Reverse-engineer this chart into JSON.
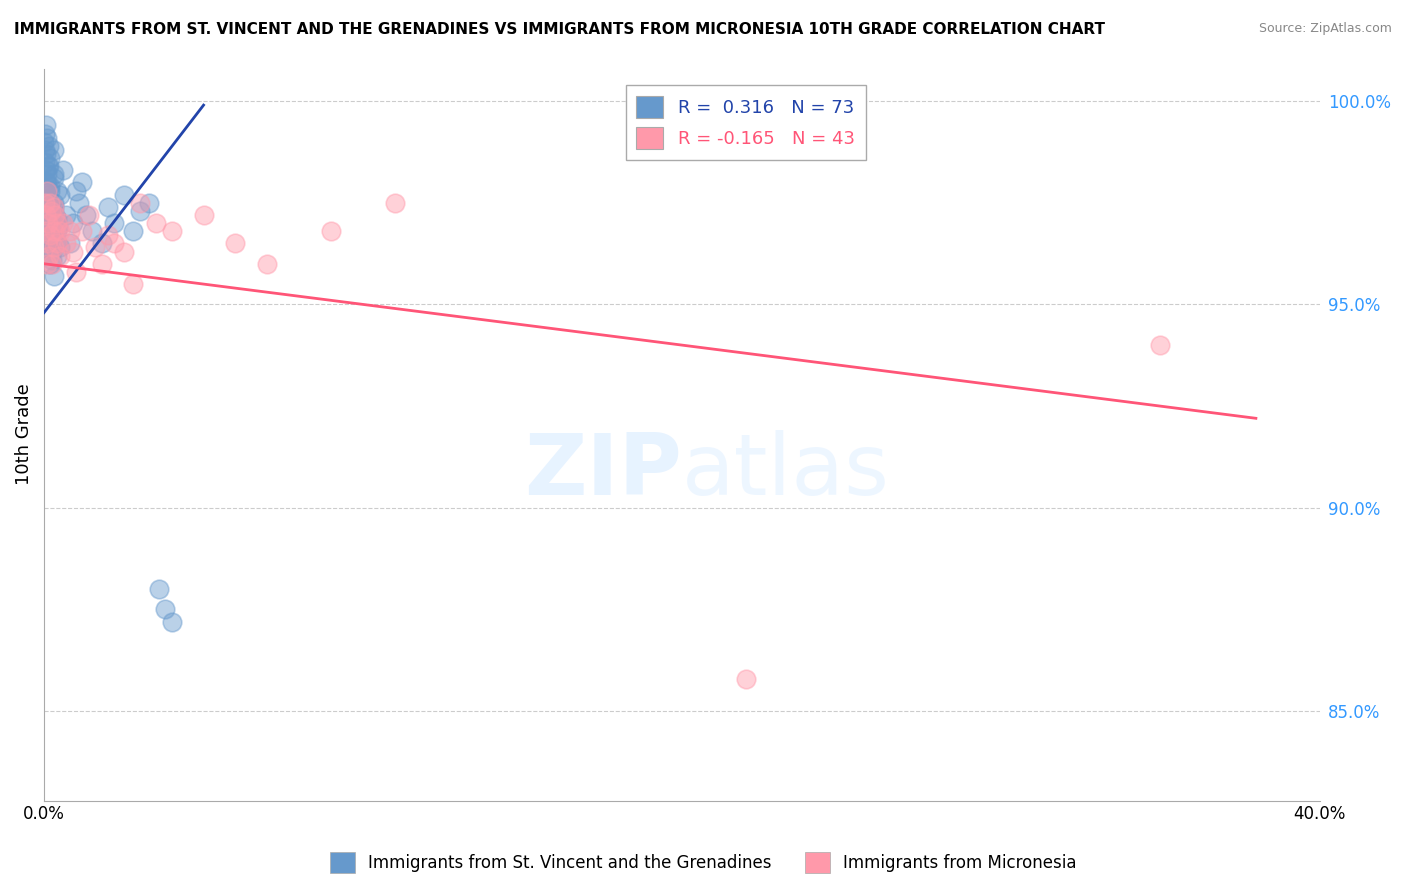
{
  "title": "IMMIGRANTS FROM ST. VINCENT AND THE GRENADINES VS IMMIGRANTS FROM MICRONESIA 10TH GRADE CORRELATION CHART",
  "source": "Source: ZipAtlas.com",
  "ylabel": "10th Grade",
  "x_min": 0.0,
  "x_max": 0.4,
  "y_min": 0.828,
  "y_max": 1.008,
  "blue_R": 0.316,
  "blue_N": 73,
  "pink_R": -0.165,
  "pink_N": 43,
  "blue_color": "#6699CC",
  "pink_color": "#FF99AA",
  "blue_line_color": "#2244AA",
  "pink_line_color": "#FF5577",
  "watermark_zip": "ZIP",
  "watermark_atlas": "atlas",
  "legend_label_blue": "Immigrants from St. Vincent and the Grenadines",
  "legend_label_pink": "Immigrants from Micronesia",
  "blue_trend_x0": 0.0,
  "blue_trend_y0": 0.948,
  "blue_trend_x1": 0.05,
  "blue_trend_y1": 0.999,
  "pink_trend_x0": 0.0,
  "pink_trend_y0": 0.96,
  "pink_trend_x1": 0.38,
  "pink_trend_y1": 0.922,
  "blue_points_x": [
    0.0002,
    0.0003,
    0.0004,
    0.0005,
    0.0006,
    0.0007,
    0.0008,
    0.0009,
    0.001,
    0.001,
    0.0012,
    0.0013,
    0.0015,
    0.0016,
    0.0018,
    0.002,
    0.002,
    0.002,
    0.0022,
    0.0025,
    0.003,
    0.003,
    0.003,
    0.003,
    0.0035,
    0.004,
    0.004,
    0.004,
    0.0045,
    0.005,
    0.0001,
    0.0002,
    0.0003,
    0.0004,
    0.0005,
    0.0006,
    0.0007,
    0.0008,
    0.001,
    0.001,
    0.0011,
    0.0014,
    0.0016,
    0.0019,
    0.002,
    0.002,
    0.0023,
    0.0026,
    0.003,
    0.003,
    0.003,
    0.004,
    0.004,
    0.005,
    0.006,
    0.007,
    0.008,
    0.009,
    0.01,
    0.011,
    0.012,
    0.013,
    0.015,
    0.018,
    0.02,
    0.022,
    0.025,
    0.028,
    0.03,
    0.033,
    0.036,
    0.038,
    0.04
  ],
  "blue_points_y": [
    0.978,
    0.971,
    0.974,
    0.968,
    0.98,
    0.965,
    0.973,
    0.977,
    0.982,
    0.969,
    0.975,
    0.963,
    0.97,
    0.984,
    0.967,
    0.972,
    0.979,
    0.986,
    0.974,
    0.961,
    0.968,
    0.975,
    0.982,
    0.988,
    0.972,
    0.965,
    0.971,
    0.978,
    0.969,
    0.964,
    0.99,
    0.985,
    0.992,
    0.988,
    0.983,
    0.994,
    0.987,
    0.991,
    0.976,
    0.98,
    0.984,
    0.989,
    0.973,
    0.966,
    0.96,
    0.978,
    0.971,
    0.963,
    0.957,
    0.974,
    0.981,
    0.968,
    0.962,
    0.977,
    0.983,
    0.972,
    0.965,
    0.97,
    0.978,
    0.975,
    0.98,
    0.972,
    0.968,
    0.965,
    0.974,
    0.97,
    0.977,
    0.968,
    0.973,
    0.975,
    0.88,
    0.875,
    0.872
  ],
  "pink_points_x": [
    0.0002,
    0.0004,
    0.0006,
    0.0008,
    0.001,
    0.001,
    0.0012,
    0.0015,
    0.002,
    0.002,
    0.0022,
    0.0025,
    0.003,
    0.003,
    0.003,
    0.0035,
    0.004,
    0.004,
    0.005,
    0.005,
    0.006,
    0.007,
    0.008,
    0.009,
    0.01,
    0.012,
    0.014,
    0.016,
    0.018,
    0.02,
    0.022,
    0.025,
    0.028,
    0.03,
    0.035,
    0.04,
    0.05,
    0.06,
    0.07,
    0.09,
    0.11,
    0.22,
    0.35
  ],
  "pink_points_y": [
    0.975,
    0.968,
    0.972,
    0.965,
    0.978,
    0.96,
    0.97,
    0.962,
    0.975,
    0.967,
    0.973,
    0.96,
    0.968,
    0.974,
    0.964,
    0.972,
    0.97,
    0.965,
    0.962,
    0.968,
    0.97,
    0.965,
    0.968,
    0.963,
    0.958,
    0.968,
    0.972,
    0.964,
    0.96,
    0.967,
    0.965,
    0.963,
    0.955,
    0.975,
    0.97,
    0.968,
    0.972,
    0.965,
    0.96,
    0.968,
    0.975,
    0.858,
    0.94
  ]
}
